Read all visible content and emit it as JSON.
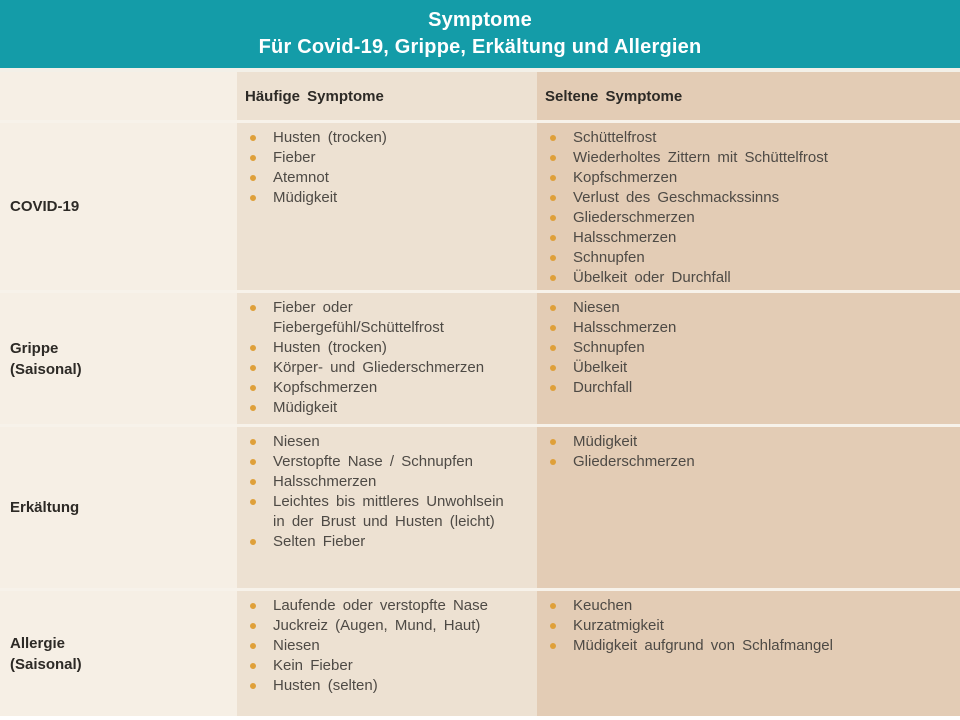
{
  "title": {
    "line1": "Symptome",
    "line2": "Für Covid-19, Grippe, Erkältung und Allergien"
  },
  "columns": {
    "common": "Häufige Symptome",
    "rare": "Seltene Symptome"
  },
  "rows": [
    {
      "label": "COVID-19",
      "sublabel": "",
      "common": [
        "Husten (trocken)",
        "Fieber",
        "Atemnot",
        "Müdigkeit"
      ],
      "rare": [
        "Schüttelfrost",
        "Wiederholtes Zittern mit Schüttelfrost",
        "Kopfschmerzen",
        "Verlust des Geschmackssinns",
        "Gliederschmerzen",
        "Halsschmerzen",
        "Schnupfen",
        "Übelkeit oder Durchfall"
      ]
    },
    {
      "label": "Grippe",
      "sublabel": "(Saisonal)",
      "common": [
        "Fieber oder Fiebergefühl/Schüttelfrost",
        "Husten (trocken)",
        "Körper- und Gliederschmerzen",
        "Kopfschmerzen",
        "Müdigkeit"
      ],
      "rare": [
        "Niesen",
        "Halsschmerzen",
        "Schnupfen",
        "Übelkeit",
        "Durchfall"
      ]
    },
    {
      "label": "Erkältung",
      "sublabel": "",
      "common": [
        "Niesen",
        "Verstopfte Nase / Schnupfen",
        "Halsschmerzen",
        "Leichtes bis mittleres Unwohlsein in der Brust und Husten (leicht)",
        "Selten Fieber"
      ],
      "rare": [
        "Müdigkeit",
        "Gliederschmerzen"
      ]
    },
    {
      "label": "Allergie",
      "sublabel": "(Saisonal)",
      "common": [
        "Laufende oder verstopfte Nase",
        "Juckreiz (Augen, Mund, Haut)",
        "Niesen",
        "Kein Fieber",
        "Husten (selten)"
      ],
      "rare": [
        "Keuchen",
        "Kurzatmigkeit",
        "Müdigkeit aufgrund von Schlafmangel"
      ]
    }
  ],
  "colors": {
    "header_bg": "#149CA8",
    "title_text": "#FFFFFF",
    "label_column_bg": "#F6EFE5",
    "common_column_bg": "#EDE1D2",
    "rare_column_bg": "#E3CCB5",
    "bullet": "#DFA03A",
    "body_text": "#4E4A45",
    "separator": "#F7F2EA"
  }
}
